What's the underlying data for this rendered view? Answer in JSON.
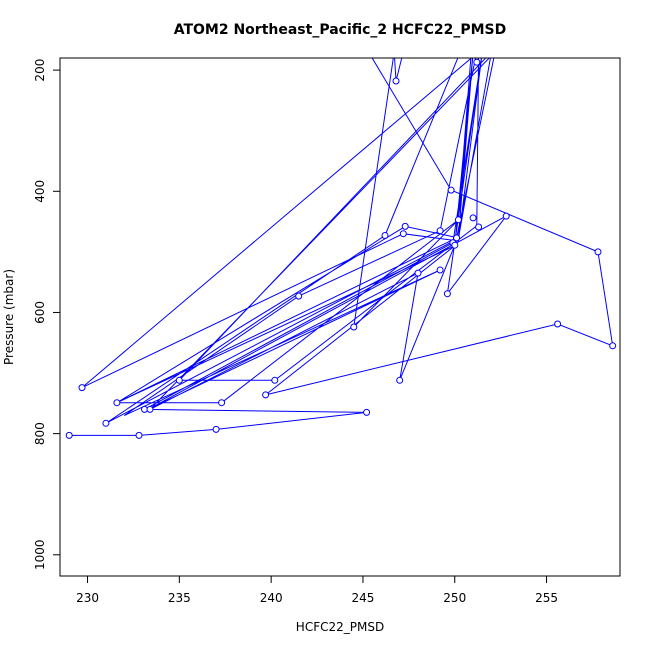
{
  "chart_data": {
    "type": "line",
    "title": "ATOM2 Northeast_Pacific_2 HCFC22_PMSD",
    "xlabel": "HCFC22_PMSD",
    "ylabel": "Pressure (mbar)",
    "xlim": [
      228.5,
      259
    ],
    "ylim": [
      1035,
      180
    ],
    "y_reversed": true,
    "grid": false,
    "legend": "none",
    "x_ticks": [
      230,
      235,
      240,
      245,
      250,
      255
    ],
    "y_ticks": [
      200,
      400,
      600,
      800,
      1000
    ],
    "series_color": "#0000ff",
    "series": [
      {
        "x": [
          229.0,
          232.8,
          237.0,
          245.2,
          248.0,
          248.2,
          230.0,
          233.2,
          237.3,
          231.1,
          246.1,
          250.3,
          231.6,
          233.4,
          240.2,
          235.3,
          251.3,
          251.0,
          235.0,
          240.2,
          251.4,
          251.0,
          241.5,
          250.0,
          249.2,
          233.4,
          241.0,
          249.9,
          257.8,
          258.6,
          255.6,
          239.7,
          250.1,
          250.5,
          247.0,
          250.0,
          249.2,
          229.7,
          247.2,
          253.0,
          246.8,
          244.5,
          247.0,
          250.0,
          252.8,
          249.6,
          255.0,
          246.0,
          249.8,
          244.0,
          234.0
        ],
        "y": [
          803,
          803,
          793,
          765,
          700,
          690,
          801,
          760,
          748,
          783,
          473,
          478,
          749,
          760,
          712,
          712,
          459,
          457,
          716,
          705,
          470,
          444,
          573,
          500,
          530,
          760,
          715,
          488,
          500,
          655,
          619,
          736,
          477,
          474,
          456,
          464,
          465,
          724,
          470,
          465,
          218,
          624,
          712,
          488,
          441,
          569,
          170,
          170,
          398,
          600,
          715
        ]
      }
    ],
    "connected_points": [
      [
        229.0,
        803
      ],
      [
        232.8,
        803
      ],
      [
        237.0,
        793
      ],
      [
        245.2,
        765
      ],
      [
        233.1,
        760
      ],
      [
        249.9,
        485
      ],
      [
        251.5,
        170
      ],
      [
        251.0,
        170
      ],
      [
        250.2,
        447
      ],
      [
        237.3,
        749
      ],
      [
        231.6,
        749
      ],
      [
        250.1,
        477
      ],
      [
        252.2,
        170
      ],
      [
        233.4,
        760
      ],
      [
        248.0,
        535
      ],
      [
        247.0,
        712
      ],
      [
        250.0,
        489
      ],
      [
        251.0,
        170
      ],
      [
        250.3,
        170
      ],
      [
        246.2,
        473
      ],
      [
        231.0,
        783
      ],
      [
        250.2,
        478
      ],
      [
        252.0,
        170
      ],
      [
        235.0,
        712
      ],
      [
        240.2,
        712
      ],
      [
        251.2,
        457
      ],
      [
        251.3,
        170
      ],
      [
        229.7,
        724
      ],
      [
        247.2,
        470
      ],
      [
        250.2,
        482
      ],
      [
        251.5,
        170
      ],
      [
        251.2,
        170
      ],
      [
        249.2,
        465
      ],
      [
        241.5,
        573
      ],
      [
        232.0,
        770
      ],
      [
        249.2,
        530
      ],
      [
        233.3,
        760
      ],
      [
        252.8,
        441
      ],
      [
        249.6,
        569
      ],
      [
        251.5,
        170
      ],
      [
        250.9,
        170
      ],
      [
        250.2,
        447
      ],
      [
        244.5,
        624
      ],
      [
        246.7,
        170
      ],
      [
        246.8,
        218
      ],
      [
        247.2,
        170
      ],
      [
        245.3,
        170
      ],
      [
        249.8,
        398
      ],
      [
        257.8,
        500
      ],
      [
        258.6,
        655
      ],
      [
        255.6,
        619
      ],
      [
        239.7,
        736
      ],
      [
        250.0,
        490
      ],
      [
        231.6,
        749
      ],
      [
        247.3,
        458
      ],
      [
        250.2,
        477
      ],
      [
        251.0,
        170
      ]
    ],
    "markers": [
      [
        229.0,
        803
      ],
      [
        232.8,
        803
      ],
      [
        237.0,
        793
      ],
      [
        245.2,
        765
      ],
      [
        233.1,
        760
      ],
      [
        233.4,
        760
      ],
      [
        237.3,
        749
      ],
      [
        231.6,
        749
      ],
      [
        231.0,
        783
      ],
      [
        229.7,
        724
      ],
      [
        235.0,
        712
      ],
      [
        240.2,
        712
      ],
      [
        239.7,
        736
      ],
      [
        241.5,
        573
      ],
      [
        244.5,
        624
      ],
      [
        247.0,
        712
      ],
      [
        248.0,
        535
      ],
      [
        246.2,
        473
      ],
      [
        247.2,
        470
      ],
      [
        247.3,
        458
      ],
      [
        249.2,
        465
      ],
      [
        249.2,
        530
      ],
      [
        249.6,
        569
      ],
      [
        249.9,
        485
      ],
      [
        250.0,
        489
      ],
      [
        250.1,
        477
      ],
      [
        250.2,
        447
      ],
      [
        251.0,
        444
      ],
      [
        251.3,
        459
      ],
      [
        252.8,
        441
      ],
      [
        249.8,
        398
      ],
      [
        246.8,
        218
      ],
      [
        251.2,
        187
      ],
      [
        257.8,
        500
      ],
      [
        258.6,
        655
      ],
      [
        255.6,
        619
      ]
    ]
  }
}
